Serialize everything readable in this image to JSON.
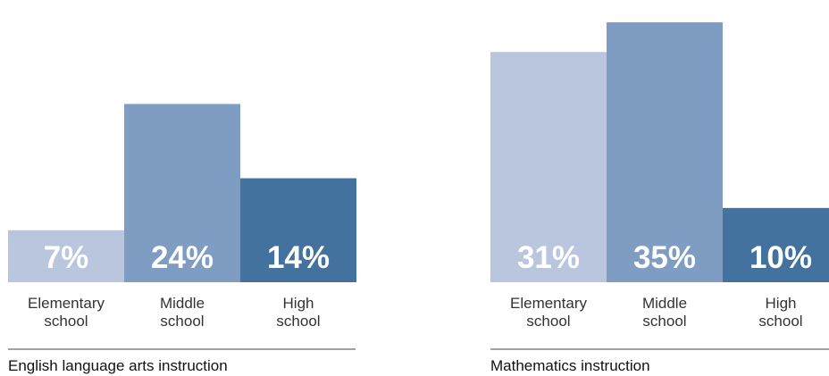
{
  "chart_data": [
    {
      "type": "bar",
      "title": "English language arts instruction",
      "categories": [
        "Elementary school",
        "Middle school",
        "High school"
      ],
      "category_lines": [
        [
          "Elementary",
          "school"
        ],
        [
          "Middle",
          "school"
        ],
        [
          "High",
          "school"
        ]
      ],
      "values": [
        7,
        24,
        14
      ],
      "value_labels": [
        "7%",
        "24%",
        "14%"
      ],
      "bar_colors": [
        "#b9c6de",
        "#7f9cc3",
        "#44729f"
      ],
      "ylim": [
        0,
        38
      ],
      "grid": false,
      "legend": "none"
    },
    {
      "type": "bar",
      "title": "Mathematics instruction",
      "categories": [
        "Elementary school",
        "Middle school",
        "High school"
      ],
      "category_lines": [
        [
          "Elementary",
          "school"
        ],
        [
          "Middle",
          "school"
        ],
        [
          "High",
          "school"
        ]
      ],
      "values": [
        31,
        35,
        10
      ],
      "value_labels": [
        "31%",
        "35%",
        "10%"
      ],
      "bar_colors": [
        "#b9c6de",
        "#7f9cc3",
        "#44729f"
      ],
      "ylim": [
        0,
        38
      ],
      "grid": false,
      "legend": "none"
    }
  ]
}
